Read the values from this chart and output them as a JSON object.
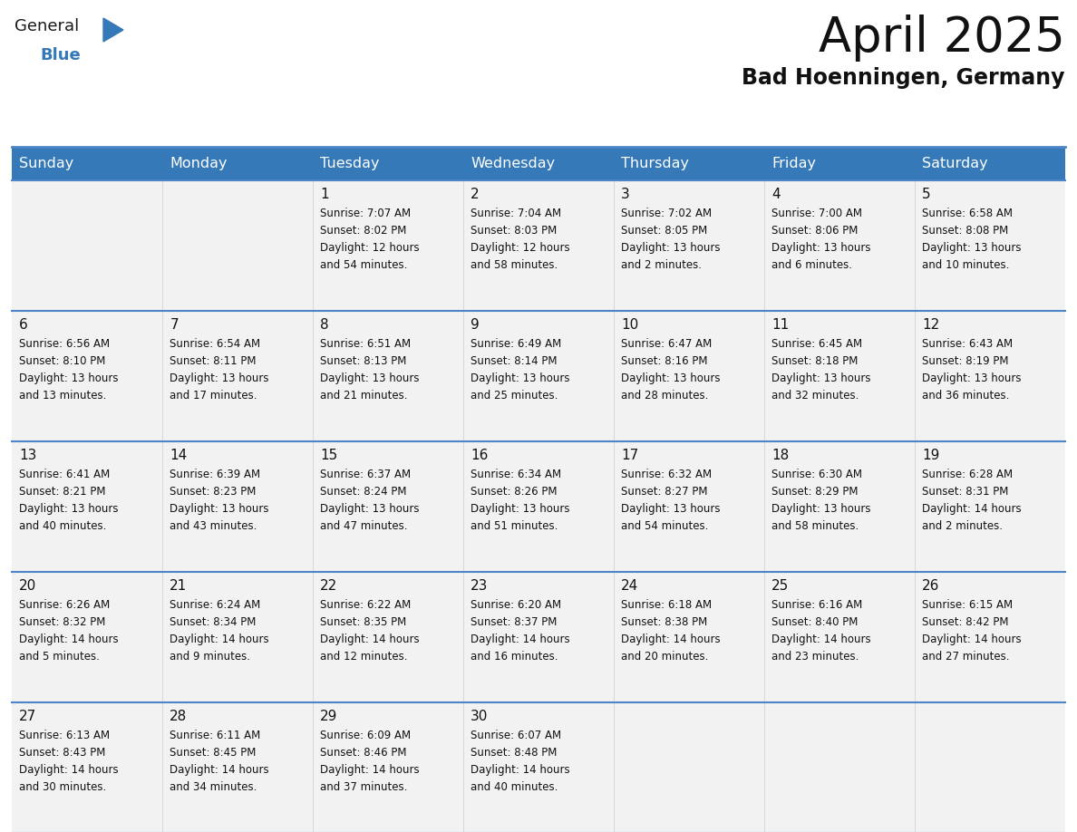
{
  "title": "April 2025",
  "subtitle": "Bad Hoenningen, Germany",
  "header_bg": "#3579b8",
  "header_text": "#ffffff",
  "cell_bg": "#f2f2f2",
  "row_line_color": "#4a86c8",
  "days_of_week": [
    "Sunday",
    "Monday",
    "Tuesday",
    "Wednesday",
    "Thursday",
    "Friday",
    "Saturday"
  ],
  "weeks": [
    [
      {
        "day": "",
        "info": ""
      },
      {
        "day": "",
        "info": ""
      },
      {
        "day": "1",
        "info": "Sunrise: 7:07 AM\nSunset: 8:02 PM\nDaylight: 12 hours\nand 54 minutes."
      },
      {
        "day": "2",
        "info": "Sunrise: 7:04 AM\nSunset: 8:03 PM\nDaylight: 12 hours\nand 58 minutes."
      },
      {
        "day": "3",
        "info": "Sunrise: 7:02 AM\nSunset: 8:05 PM\nDaylight: 13 hours\nand 2 minutes."
      },
      {
        "day": "4",
        "info": "Sunrise: 7:00 AM\nSunset: 8:06 PM\nDaylight: 13 hours\nand 6 minutes."
      },
      {
        "day": "5",
        "info": "Sunrise: 6:58 AM\nSunset: 8:08 PM\nDaylight: 13 hours\nand 10 minutes."
      }
    ],
    [
      {
        "day": "6",
        "info": "Sunrise: 6:56 AM\nSunset: 8:10 PM\nDaylight: 13 hours\nand 13 minutes."
      },
      {
        "day": "7",
        "info": "Sunrise: 6:54 AM\nSunset: 8:11 PM\nDaylight: 13 hours\nand 17 minutes."
      },
      {
        "day": "8",
        "info": "Sunrise: 6:51 AM\nSunset: 8:13 PM\nDaylight: 13 hours\nand 21 minutes."
      },
      {
        "day": "9",
        "info": "Sunrise: 6:49 AM\nSunset: 8:14 PM\nDaylight: 13 hours\nand 25 minutes."
      },
      {
        "day": "10",
        "info": "Sunrise: 6:47 AM\nSunset: 8:16 PM\nDaylight: 13 hours\nand 28 minutes."
      },
      {
        "day": "11",
        "info": "Sunrise: 6:45 AM\nSunset: 8:18 PM\nDaylight: 13 hours\nand 32 minutes."
      },
      {
        "day": "12",
        "info": "Sunrise: 6:43 AM\nSunset: 8:19 PM\nDaylight: 13 hours\nand 36 minutes."
      }
    ],
    [
      {
        "day": "13",
        "info": "Sunrise: 6:41 AM\nSunset: 8:21 PM\nDaylight: 13 hours\nand 40 minutes."
      },
      {
        "day": "14",
        "info": "Sunrise: 6:39 AM\nSunset: 8:23 PM\nDaylight: 13 hours\nand 43 minutes."
      },
      {
        "day": "15",
        "info": "Sunrise: 6:37 AM\nSunset: 8:24 PM\nDaylight: 13 hours\nand 47 minutes."
      },
      {
        "day": "16",
        "info": "Sunrise: 6:34 AM\nSunset: 8:26 PM\nDaylight: 13 hours\nand 51 minutes."
      },
      {
        "day": "17",
        "info": "Sunrise: 6:32 AM\nSunset: 8:27 PM\nDaylight: 13 hours\nand 54 minutes."
      },
      {
        "day": "18",
        "info": "Sunrise: 6:30 AM\nSunset: 8:29 PM\nDaylight: 13 hours\nand 58 minutes."
      },
      {
        "day": "19",
        "info": "Sunrise: 6:28 AM\nSunset: 8:31 PM\nDaylight: 14 hours\nand 2 minutes."
      }
    ],
    [
      {
        "day": "20",
        "info": "Sunrise: 6:26 AM\nSunset: 8:32 PM\nDaylight: 14 hours\nand 5 minutes."
      },
      {
        "day": "21",
        "info": "Sunrise: 6:24 AM\nSunset: 8:34 PM\nDaylight: 14 hours\nand 9 minutes."
      },
      {
        "day": "22",
        "info": "Sunrise: 6:22 AM\nSunset: 8:35 PM\nDaylight: 14 hours\nand 12 minutes."
      },
      {
        "day": "23",
        "info": "Sunrise: 6:20 AM\nSunset: 8:37 PM\nDaylight: 14 hours\nand 16 minutes."
      },
      {
        "day": "24",
        "info": "Sunrise: 6:18 AM\nSunset: 8:38 PM\nDaylight: 14 hours\nand 20 minutes."
      },
      {
        "day": "25",
        "info": "Sunrise: 6:16 AM\nSunset: 8:40 PM\nDaylight: 14 hours\nand 23 minutes."
      },
      {
        "day": "26",
        "info": "Sunrise: 6:15 AM\nSunset: 8:42 PM\nDaylight: 14 hours\nand 27 minutes."
      }
    ],
    [
      {
        "day": "27",
        "info": "Sunrise: 6:13 AM\nSunset: 8:43 PM\nDaylight: 14 hours\nand 30 minutes."
      },
      {
        "day": "28",
        "info": "Sunrise: 6:11 AM\nSunset: 8:45 PM\nDaylight: 14 hours\nand 34 minutes."
      },
      {
        "day": "29",
        "info": "Sunrise: 6:09 AM\nSunset: 8:46 PM\nDaylight: 14 hours\nand 37 minutes."
      },
      {
        "day": "30",
        "info": "Sunrise: 6:07 AM\nSunset: 8:48 PM\nDaylight: 14 hours\nand 40 minutes."
      },
      {
        "day": "",
        "info": ""
      },
      {
        "day": "",
        "info": ""
      },
      {
        "day": "",
        "info": ""
      }
    ]
  ],
  "logo_text_general": "General",
  "logo_text_blue": "Blue",
  "logo_color_general": "#1a1a1a",
  "logo_color_blue": "#3579b8",
  "logo_triangle_color": "#3579b8",
  "title_fontsize": 38,
  "subtitle_fontsize": 17,
  "header_fontsize": 11.5,
  "day_number_fontsize": 11,
  "info_fontsize": 8.5
}
